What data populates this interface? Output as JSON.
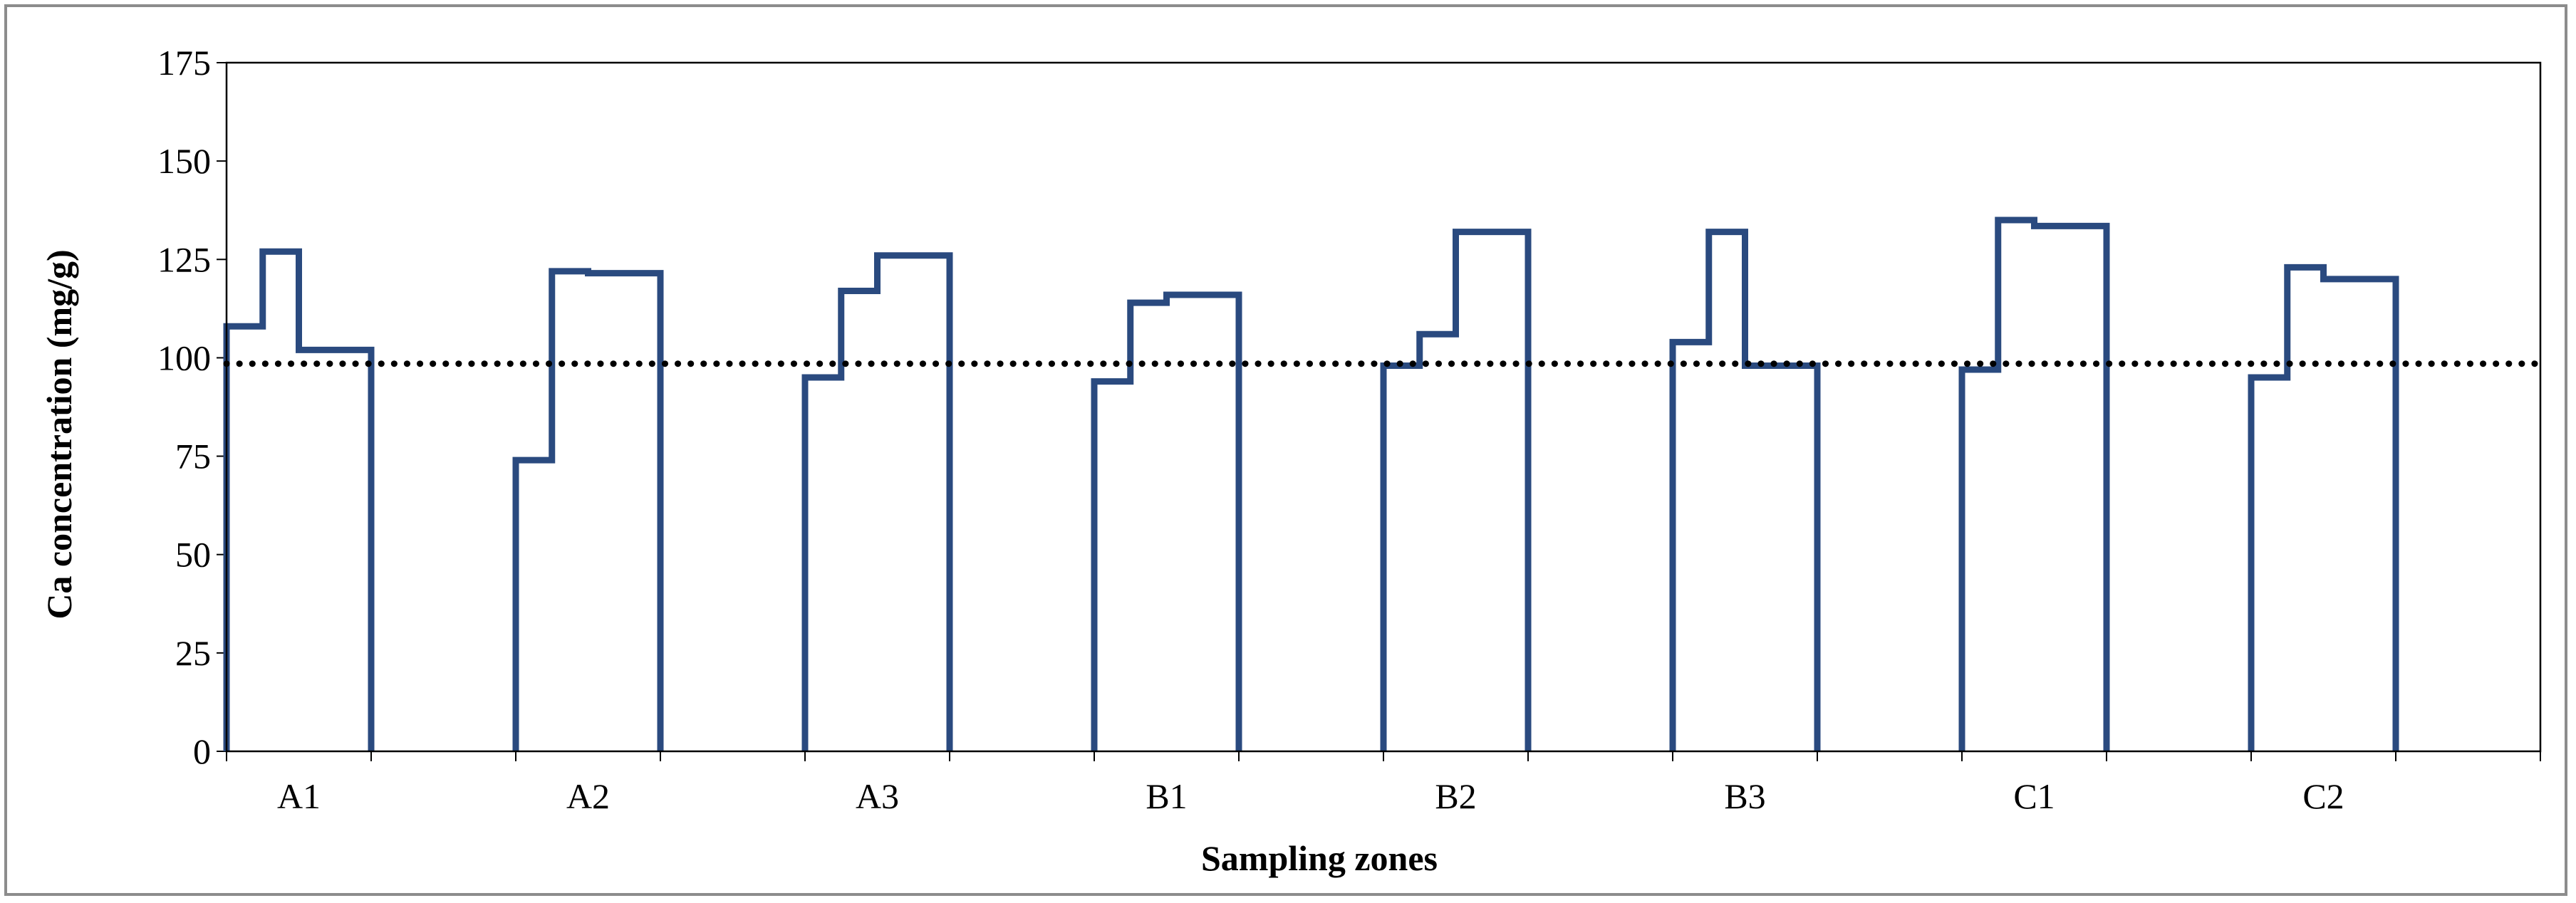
{
  "chart_data": {
    "type": "line",
    "subtype": "step",
    "title": "",
    "xlabel": "Sampling zones",
    "ylabel": "Ca concentration (mg/g)",
    "ylim": [
      0,
      175
    ],
    "yticks": [
      0,
      25,
      50,
      75,
      100,
      125,
      150,
      175
    ],
    "grid": false,
    "legend": "none",
    "categories": [
      "A1",
      "A2",
      "A3",
      "B1",
      "B2",
      "B3",
      "C1",
      "C2"
    ],
    "series": [
      {
        "color": "#2a4a7f",
        "zones": [
          {
            "zone": "A1",
            "steps": [
              108,
              127,
              102,
              102
            ]
          },
          {
            "zone": "A2",
            "steps": [
              74,
              122,
              121.5,
              121.5
            ]
          },
          {
            "zone": "A3",
            "steps": [
              95,
              117,
              126,
              126
            ]
          },
          {
            "zone": "B1",
            "steps": [
              94,
              114,
              116,
              116
            ]
          },
          {
            "zone": "B2",
            "steps": [
              98,
              106,
              132,
              132
            ]
          },
          {
            "zone": "B3",
            "steps": [
              104,
              132,
              98,
              98
            ]
          },
          {
            "zone": "C1",
            "steps": [
              97,
              135,
              133.5,
              133.5
            ]
          },
          {
            "zone": "C2",
            "steps": [
              95,
              123,
              120,
              120
            ]
          }
        ]
      }
    ],
    "reference_line": {
      "value": 98.5,
      "style": "dotted",
      "color": "#000000"
    }
  }
}
